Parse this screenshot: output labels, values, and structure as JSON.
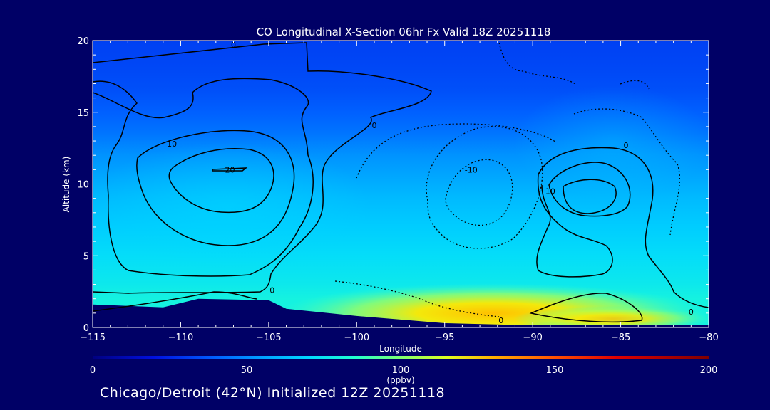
{
  "footer_text": "Chicago/Detroit (42°N) Initialized 12Z 20251118",
  "colors": {
    "background": "#000066",
    "contour_line": "#000000",
    "text": "#ffffff"
  },
  "chart_data": {
    "type": "contour",
    "title": "CO Longitudinal X-Section 06hr  Fx Valid 18Z 20251118",
    "xlabel": "Longitude",
    "ylabel": "Altitude (km)",
    "xlim": [
      -115,
      -80
    ],
    "ylim": [
      0,
      20
    ],
    "x_ticks": [
      -115,
      -110,
      -105,
      -100,
      -95,
      -90,
      -85,
      -80
    ],
    "x_tick_labels": [
      "−115",
      "−110",
      "−105",
      "−100",
      "−95",
      "−90",
      "−85",
      "−80"
    ],
    "y_ticks": [
      0,
      5,
      10,
      15,
      20
    ],
    "y_tick_labels": [
      "0",
      "5",
      "10",
      "15",
      "20"
    ],
    "grid": false,
    "colorbar": {
      "min": 0,
      "max": 200,
      "ticks": [
        0,
        50,
        100,
        150,
        200
      ],
      "tick_labels": [
        "0",
        "50",
        "100",
        "150",
        "200"
      ],
      "units": "(ppbv)",
      "stops": [
        {
          "value": 0,
          "color": "#000080"
        },
        {
          "value": 20,
          "color": "#0010e0"
        },
        {
          "value": 40,
          "color": "#0060ff"
        },
        {
          "value": 55,
          "color": "#00a0ff"
        },
        {
          "value": 70,
          "color": "#00d8ff"
        },
        {
          "value": 85,
          "color": "#20ffd0"
        },
        {
          "value": 100,
          "color": "#80ff70"
        },
        {
          "value": 115,
          "color": "#e0ff20"
        },
        {
          "value": 130,
          "color": "#ffb000"
        },
        {
          "value": 150,
          "color": "#ff5000"
        },
        {
          "value": 170,
          "color": "#e00000"
        },
        {
          "value": 200,
          "color": "#800000"
        }
      ]
    },
    "co_field_profile": [
      {
        "altitude_km": 20,
        "co_ppbv": 32
      },
      {
        "altitude_km": 18,
        "co_ppbv": 34
      },
      {
        "altitude_km": 16.5,
        "co_ppbv": 36
      },
      {
        "altitude_km": 15,
        "co_ppbv": 40
      },
      {
        "altitude_km": 13.5,
        "co_ppbv": 45
      },
      {
        "altitude_km": 12,
        "co_ppbv": 52
      },
      {
        "altitude_km": 10.5,
        "co_ppbv": 57
      },
      {
        "altitude_km": 9,
        "co_ppbv": 62
      },
      {
        "altitude_km": 7,
        "co_ppbv": 67
      },
      {
        "altitude_km": 5,
        "co_ppbv": 72
      },
      {
        "altitude_km": 3,
        "co_ppbv": 76
      },
      {
        "altitude_km": 2,
        "co_ppbv": 80
      }
    ],
    "terrain": [
      {
        "lon": -115,
        "alt_km": 1.6
      },
      {
        "lon": -111,
        "alt_km": 1.4
      },
      {
        "lon": -109,
        "alt_km": 2.0
      },
      {
        "lon": -105,
        "alt_km": 1.9
      },
      {
        "lon": -104,
        "alt_km": 1.3
      },
      {
        "lon": -100,
        "alt_km": 0.8
      },
      {
        "lon": -95,
        "alt_km": 0.3
      },
      {
        "lon": -90,
        "alt_km": 0.15
      },
      {
        "lon": -85,
        "alt_km": 0.2
      },
      {
        "lon": -80,
        "alt_km": 0.2
      }
    ],
    "surface_maximum": {
      "lon_range": [
        -98,
        -80
      ],
      "peak_lon": -91,
      "peak_co_ppbv": 130
    },
    "contour_labels": [
      {
        "text": "0",
        "lon": -107.0,
        "alt_km": 19.7
      },
      {
        "text": "10",
        "lon": -110.5,
        "alt_km": 12.8
      },
      {
        "text": "20",
        "lon": -107.2,
        "alt_km": 11.0
      },
      {
        "text": "0",
        "lon": -99.0,
        "alt_km": 14.1
      },
      {
        "text": "-10",
        "lon": -93.5,
        "alt_km": 11.0
      },
      {
        "text": "0",
        "lon": -84.7,
        "alt_km": 12.7
      },
      {
        "text": "10",
        "lon": -89.0,
        "alt_km": 9.5
      },
      {
        "text": "0",
        "lon": -104.8,
        "alt_km": 2.6
      },
      {
        "text": "0",
        "lon": -91.8,
        "alt_km": 0.5
      },
      {
        "text": "0",
        "lon": -81.0,
        "alt_km": 1.1
      }
    ]
  }
}
